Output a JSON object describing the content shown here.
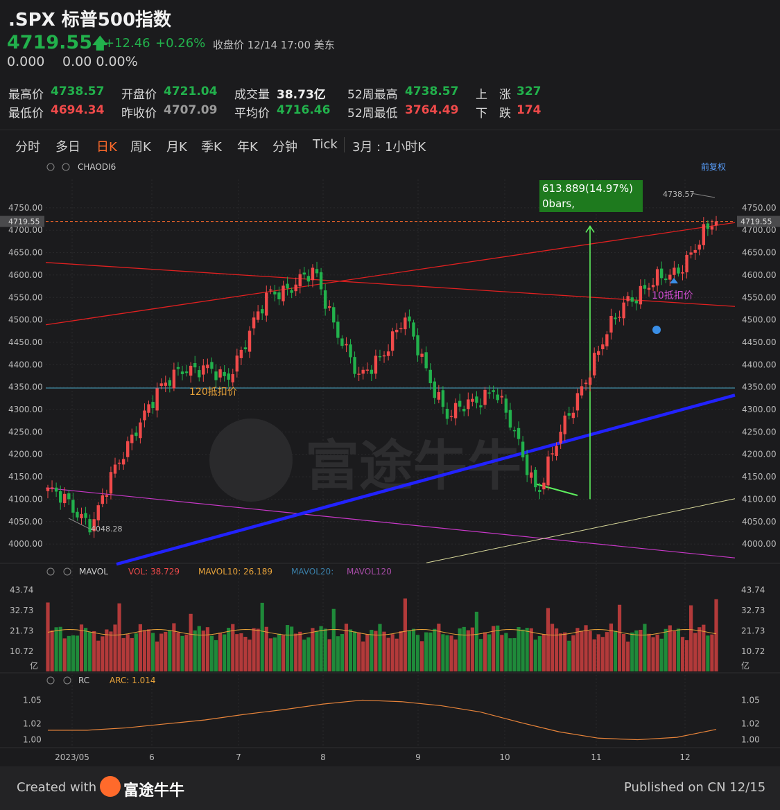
{
  "header": {
    "symbol_title": ".SPX 标普500指数",
    "price": "4719.55",
    "change": "+12.46",
    "change_pct": "+0.26%",
    "status": "收盘价 12/14 17:00 美东",
    "sub_value": "0.000",
    "sub_change": "0.00 0.00%"
  },
  "stats": [
    {
      "label": "最高价",
      "value": "4738.57",
      "color": "#22b14c"
    },
    {
      "label": "开盘价",
      "value": "4721.04",
      "color": "#22b14c"
    },
    {
      "label": "成交量",
      "value": "38.73亿",
      "color": "#f0f0f0"
    },
    {
      "label": "52周最高",
      "value": "4738.57",
      "color": "#22b14c"
    },
    {
      "label": "上　涨",
      "value": "327",
      "color": "#22b14c"
    },
    {
      "label": "最低价",
      "value": "4694.34",
      "color": "#f04a4a"
    },
    {
      "label": "昨收价",
      "value": "4707.09",
      "color": "#9a9a9a"
    },
    {
      "label": "平均价",
      "value": "4716.46",
      "color": "#22b14c"
    },
    {
      "label": "52周最低",
      "value": "3764.49",
      "color": "#f04a4a"
    },
    {
      "label": "下　跌",
      "value": "174",
      "color": "#f04a4a"
    }
  ],
  "tabs": [
    "分时",
    "多日",
    "日K",
    "周K",
    "月K",
    "季K",
    "年K",
    "分钟",
    "Tick",
    "3月 : 1小时K"
  ],
  "active_tab": "日K",
  "indicator_bar": {
    "name": "CHAODI6",
    "adjust": "前复权"
  },
  "annotations": {
    "measure_value": "613.889(14.97%)",
    "measure_bars": "0bars,",
    "high_label": "4738.57",
    "low_label": "4048.28",
    "current_price_tag": "4719.55",
    "ma120_label": "120抵扣价",
    "ma10_label": "10抵扣价"
  },
  "vol_legend": {
    "name": "MAVOL",
    "vol": "VOL: 38.729",
    "mavol10": "MAVOL10: 26.189",
    "mavol20": "MAVOL20:",
    "mavol120": "MAVOL120",
    "unit": "亿"
  },
  "rc_legend": {
    "name": "RC",
    "arc": "ARC: 1.014"
  },
  "footer": {
    "created": "Created with",
    "brand": "富途牛牛",
    "published": "Published on CN 12/15"
  },
  "watermark": "富途牛牛",
  "colors": {
    "up": "#f04a4a",
    "down": "#22b14c",
    "bg": "#1b1b1d",
    "blue_trend": "#2222ff",
    "accent": "#ff6a2b"
  },
  "chart_data": [
    {
      "type": "candlestick",
      "title": ".SPX 标普500指数 日K",
      "y_ticks": [
        4000,
        4050,
        4100,
        4150,
        4200,
        4250,
        4300,
        4350,
        4400,
        4450,
        4500,
        4550,
        4600,
        4650,
        4700,
        4750
      ],
      "ylim": [
        3960,
        4790
      ],
      "x_labels": [
        "2023/05",
        "6",
        "7",
        "8",
        "9",
        "10",
        "11",
        "12"
      ],
      "horizontal_line": 4348,
      "anchors": [
        {
          "month": "2023/05",
          "close": 4120
        },
        {
          "month": "5",
          "close": 4048.28
        },
        {
          "month": "6",
          "close": 4270
        },
        {
          "month": "6",
          "close": 4400
        },
        {
          "month": "7",
          "close": 4370
        },
        {
          "month": "7",
          "close": 4560
        },
        {
          "month": "8",
          "close": 4600
        },
        {
          "month": "8",
          "close": 4360
        },
        {
          "month": "9",
          "close": 4500
        },
        {
          "month": "9",
          "close": 4280
        },
        {
          "month": "10",
          "close": 4350
        },
        {
          "month": "10",
          "close": 4120
        },
        {
          "month": "11",
          "close": 4360
        },
        {
          "month": "11",
          "close": 4550
        },
        {
          "month": "12",
          "close": 4600
        },
        {
          "month": "12",
          "close": 4719.55
        }
      ]
    },
    {
      "type": "bar",
      "title": "MAVOL",
      "y_ticks": [
        10.72,
        21.73,
        32.73,
        43.74
      ],
      "ylim": [
        0,
        45
      ],
      "last_vol": 38.729,
      "mavol10": 26.189
    },
    {
      "type": "line",
      "title": "RC",
      "y_ticks": [
        1.0,
        1.02,
        1.05
      ],
      "ylim": [
        0.99,
        1.06
      ],
      "arc": 1.014,
      "points": [
        1.012,
        1.012,
        1.015,
        1.02,
        1.025,
        1.032,
        1.038,
        1.045,
        1.05,
        1.048,
        1.043,
        1.035,
        1.022,
        1.01,
        1.002,
        1.0,
        1.003,
        1.013
      ]
    }
  ]
}
